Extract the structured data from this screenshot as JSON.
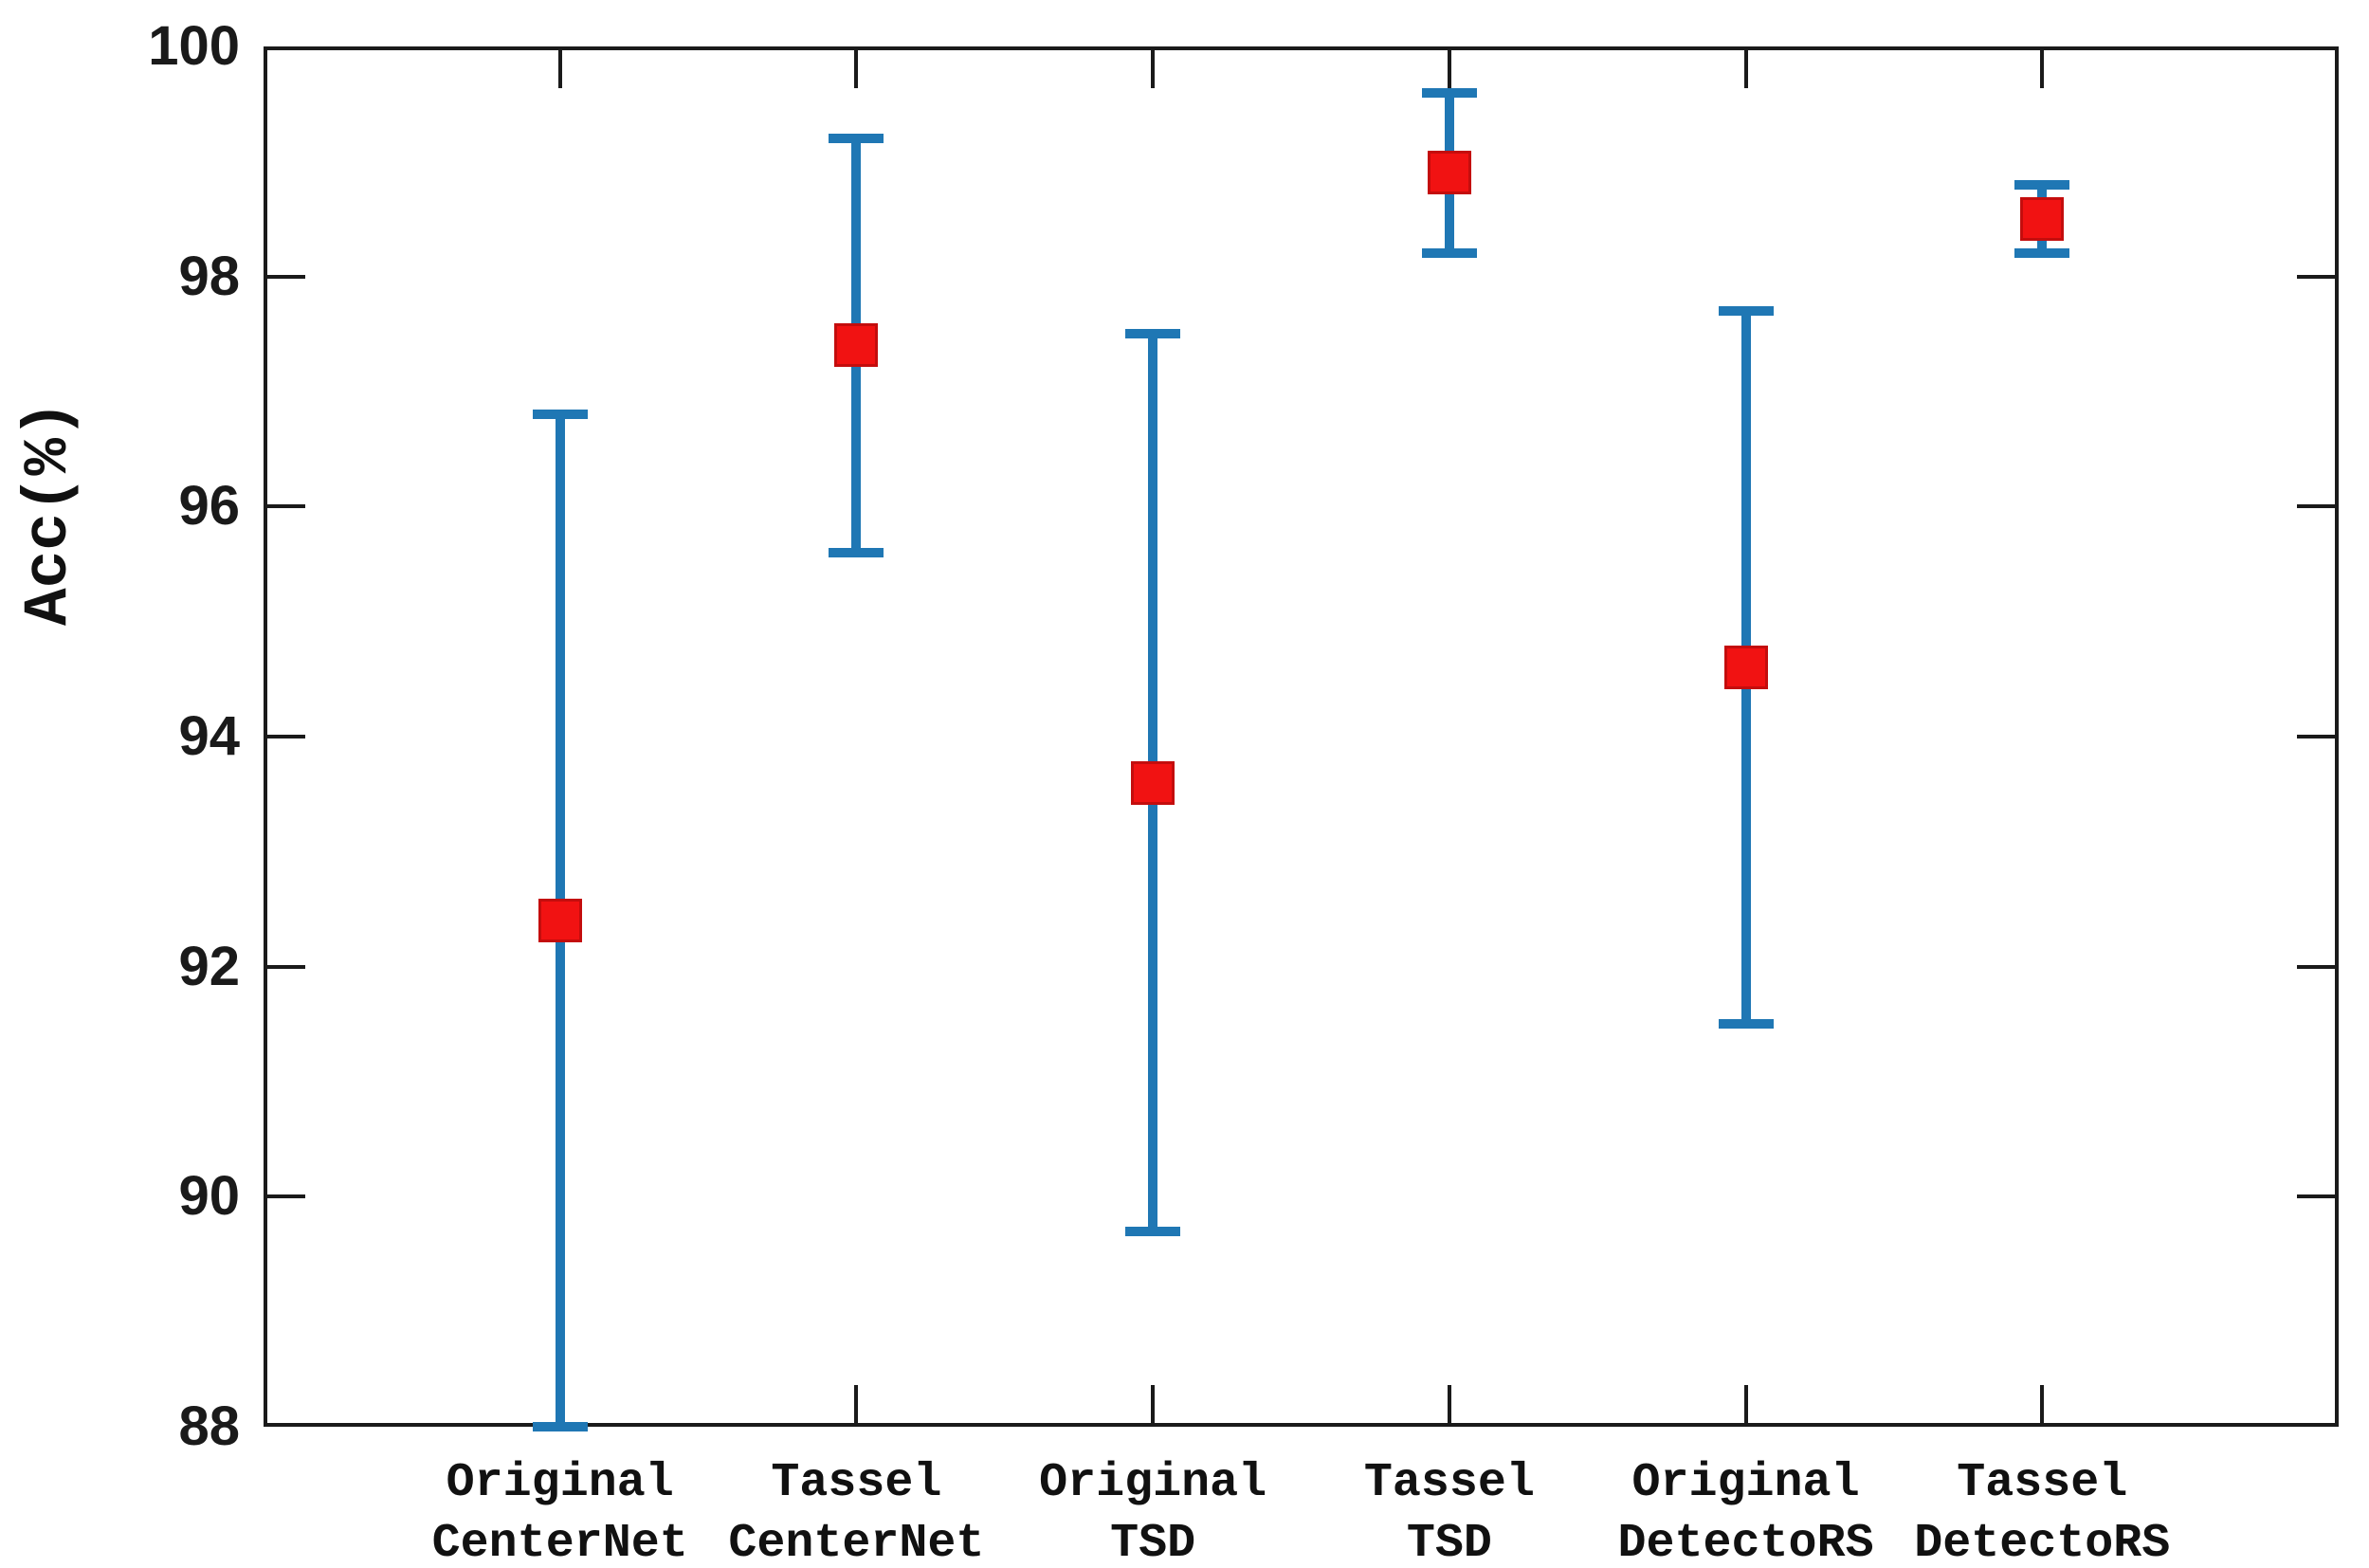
{
  "chart_data": {
    "type": "errorbar",
    "title": "",
    "ylabel": "Acc(%)",
    "xlabel": "",
    "ylim": [
      88,
      100
    ],
    "yticks": [
      88,
      90,
      92,
      94,
      96,
      98,
      100
    ],
    "grid": false,
    "legend": "none",
    "categories": [
      {
        "label_lines": [
          "Original",
          "CenterNet"
        ],
        "mean": 92.4,
        "low": 88.0,
        "high": 96.8
      },
      {
        "label_lines": [
          "Tassel",
          "CenterNet"
        ],
        "mean": 97.4,
        "low": 95.6,
        "high": 99.2
      },
      {
        "label_lines": [
          "Original",
          "TSD"
        ],
        "mean": 93.6,
        "low": 89.7,
        "high": 97.5
      },
      {
        "label_lines": [
          "Tassel",
          "TSD"
        ],
        "mean": 98.9,
        "low": 98.2,
        "high": 99.6
      },
      {
        "label_lines": [
          "Original",
          "DetectoRS"
        ],
        "mean": 94.6,
        "low": 91.5,
        "high": 97.7
      },
      {
        "label_lines": [
          "Tassel",
          "DetectoRS"
        ],
        "mean": 98.5,
        "low": 98.2,
        "high": 98.8
      }
    ],
    "colors": {
      "error_bar": "#1f77b4",
      "marker_fill": "#f11212",
      "marker_edge": "#c40d0d",
      "axis": "#1a1a1a",
      "text": "#111111",
      "background": "#ffffff"
    }
  }
}
